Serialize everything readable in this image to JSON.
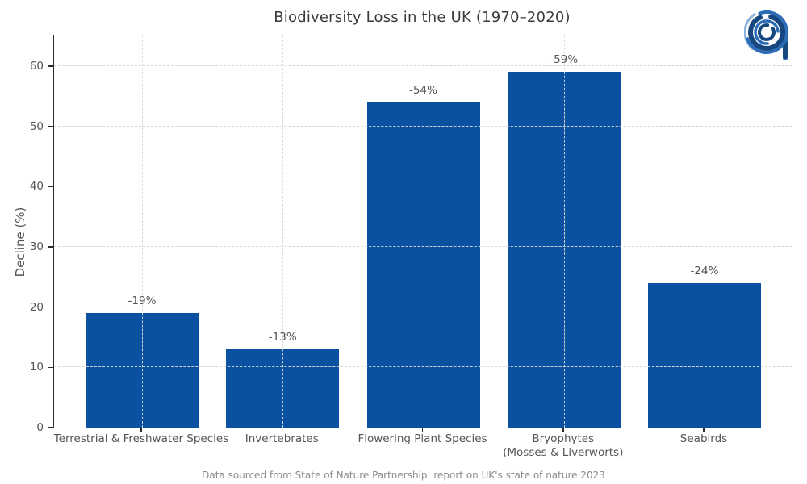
{
  "title": "Biodiversity Loss in the UK (1970–2020)",
  "footer": "Data sourced from State of Nature Partnership: report on UK's state of nature 2023",
  "logo": {
    "name": "stylized-a-rings-logo"
  },
  "colors": {
    "bar": "#0b51a2",
    "axis": "#2b2b2b",
    "tick_text": "#555555",
    "title_text": "#3a3a3a",
    "footer_text": "#8a8a8a",
    "grid": "#d6d6d6",
    "logo_dark": "#17477f",
    "logo_mid": "#2a6cb5",
    "logo_light": "#8fb4da"
  },
  "chart_data": {
    "type": "bar",
    "title": "Biodiversity Loss in the UK (1970–2020)",
    "categories": [
      "Terrestrial & Freshwater Species",
      "Invertebrates",
      "Flowering Plant Species",
      "Bryophytes\n(Mosses & Liverworts)",
      "Seabirds"
    ],
    "values": [
      19,
      13,
      54,
      59,
      24
    ],
    "bar_labels": [
      "-19%",
      "-13%",
      "-54%",
      "-59%",
      "-24%"
    ],
    "xlabel": "",
    "ylabel": "Decline (%)",
    "ylim": [
      0,
      65
    ],
    "yticks": [
      0,
      10,
      20,
      30,
      40,
      50,
      60
    ],
    "grid": "horizontal dashed at y ticks, vertical dashed at bar centers",
    "legend": "none",
    "bar_color": "#0b51a2"
  }
}
